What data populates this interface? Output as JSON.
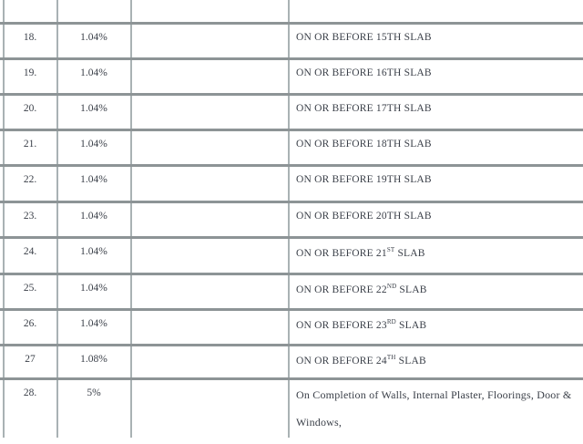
{
  "table": {
    "rows": [
      {
        "no": "18.",
        "pct": "1.04%",
        "desc": "ON OR BEFORE 15TH SLAB",
        "sup": ""
      },
      {
        "no": "19.",
        "pct": "1.04%",
        "desc": "ON OR BEFORE 16TH SLAB",
        "sup": ""
      },
      {
        "no": "20.",
        "pct": "1.04%",
        "desc": "ON OR BEFORE 17TH SLAB",
        "sup": ""
      },
      {
        "no": "21.",
        "pct": "1.04%",
        "desc": "ON OR BEFORE 18TH SLAB",
        "sup": ""
      },
      {
        "no": "22.",
        "pct": "1.04%",
        "desc": "ON OR BEFORE 19TH SLAB",
        "sup": ""
      },
      {
        "no": "23.",
        "pct": "1.04%",
        "desc": "ON OR BEFORE 20TH SLAB",
        "sup": ""
      },
      {
        "no": "24.",
        "pct": "1.04%",
        "desc": "ON OR BEFORE 21",
        "sup": "ST",
        "tail": " SLAB"
      },
      {
        "no": "25.",
        "pct": "1.04%",
        "desc": "ON OR BEFORE 22",
        "sup": "ND",
        "tail": " SLAB"
      },
      {
        "no": "26.",
        "pct": "1.04%",
        "desc": "ON OR BEFORE 23",
        "sup": "RD",
        "tail": " SLAB"
      },
      {
        "no": "27",
        "pct": "1.08%",
        "desc": "ON OR BEFORE 24",
        "sup": "TH",
        "tail": " SLAB"
      },
      {
        "no": "28.",
        "pct": "5%",
        "desc": "On Completion of Walls, Internal Plaster, Floorings, Door & Windows,",
        "sup": ""
      }
    ]
  }
}
